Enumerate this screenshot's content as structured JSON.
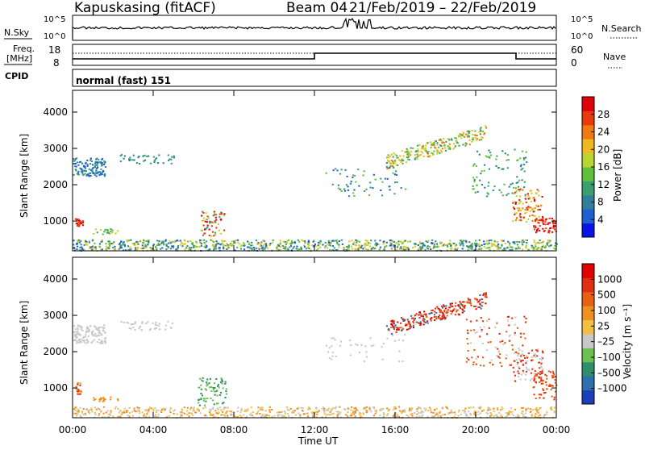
{
  "header": {
    "station": "Kapuskasing (fitACF)",
    "beam": "Beam 04",
    "date_range": "21/Feb/2019 – 22/Feb/2019"
  },
  "status": {
    "nsky_label": "N.Sky",
    "nsky_ticks": [
      "10^5",
      "10^0"
    ],
    "nsearch_label": "N.Search",
    "nsearch_ticks": [
      "10^5",
      "10^0"
    ],
    "freq_label_line1": "Freq.",
    "freq_label_line2": "[MHz]",
    "freq_ticks": [
      "18",
      "8"
    ],
    "nave_label": "Nave",
    "nave_ticks": [
      "60",
      "0"
    ],
    "cpid_label": "CPID",
    "cpid_text": "normal (fast) 151"
  },
  "chart_data": [
    {
      "type": "heatmap",
      "name": "power",
      "ylabel": "Slant Range [km]",
      "yticks": [
        1000,
        2000,
        3000,
        4000
      ],
      "ylim": [
        180,
        4600
      ],
      "xlim_hours": [
        0,
        24
      ],
      "colorbar_label": "Power [dB]",
      "colorbar_ticks": [
        "28",
        "24",
        "20",
        "16",
        "12",
        "8",
        "4"
      ],
      "colorbar_colors": [
        "#0a14e6",
        "#1e5fd2",
        "#2f7f9c",
        "#3a9e6e",
        "#5fc03e",
        "#b8d630",
        "#f2b820",
        "#f07a10",
        "#e83a0a",
        "#e0000a"
      ]
    },
    {
      "type": "heatmap",
      "name": "velocity",
      "ylabel": "Slant Range [km]",
      "yticks": [
        1000,
        2000,
        3000,
        4000
      ],
      "ylim": [
        180,
        4600
      ],
      "xlim_hours": [
        0,
        24
      ],
      "colorbar_label": "Velocity [m s⁻¹]",
      "colorbar_ticks": [
        "1000",
        "500",
        "100",
        "25",
        "–25",
        "–100",
        "–500",
        "–1000"
      ],
      "colorbar_colors": [
        "#1a3fb8",
        "#2f6fb0",
        "#2f8f6a",
        "#6cc050",
        "#c8c8c8",
        "#f2c040",
        "#f09020",
        "#e86010",
        "#e03010",
        "#e00000"
      ]
    }
  ],
  "xaxis": {
    "ticks": [
      "00:00",
      "04:00",
      "08:00",
      "12:00",
      "16:00",
      "20:00",
      "00:00"
    ],
    "label": "Time UT"
  }
}
